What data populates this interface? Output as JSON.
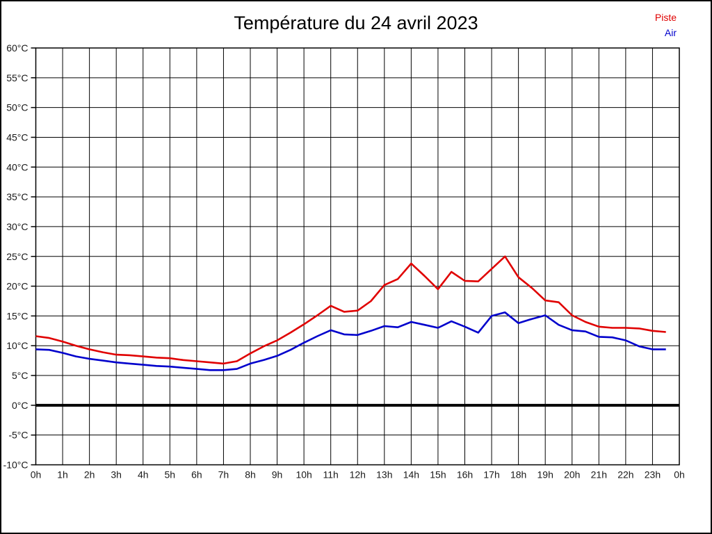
{
  "title": "Température du 24 avril 2023",
  "legend": {
    "items": [
      {
        "label": "Piste",
        "color": "#e00000"
      },
      {
        "label": "Air",
        "color": "#0000cc"
      }
    ]
  },
  "chart_data": {
    "type": "line",
    "title": "Température du 24 avril 2023",
    "xlabel": "",
    "ylabel": "",
    "xlim": [
      0,
      24
    ],
    "ylim": [
      -10,
      60
    ],
    "x_tick_step": 1,
    "y_tick_step": 5,
    "x_tick_labels": [
      "0h",
      "1h",
      "2h",
      "3h",
      "4h",
      "5h",
      "6h",
      "7h",
      "8h",
      "9h",
      "10h",
      "11h",
      "12h",
      "13h",
      "14h",
      "15h",
      "16h",
      "17h",
      "18h",
      "19h",
      "20h",
      "21h",
      "22h",
      "23h",
      "0h"
    ],
    "y_tick_labels": [
      "60°C",
      "55°C",
      "50°C",
      "45°C",
      "40°C",
      "35°C",
      "30°C",
      "25°C",
      "20°C",
      "15°C",
      "10°C",
      "5°C",
      "0°C",
      "-5°C",
      "-10°C"
    ],
    "grid": true,
    "zero_line": true,
    "legend_position": "top-right",
    "x_hours": [
      0,
      0.5,
      1,
      1.5,
      2,
      2.5,
      3,
      3.5,
      4,
      4.5,
      5,
      5.5,
      6,
      6.5,
      7,
      7.5,
      8,
      8.5,
      9,
      9.5,
      10,
      10.5,
      11,
      11.5,
      12,
      12.5,
      13,
      13.5,
      14,
      14.5,
      15,
      15.5,
      16,
      16.5,
      17,
      17.5,
      18,
      18.5,
      19,
      19.5,
      20,
      20.5,
      21,
      21.5,
      22,
      22.5,
      23,
      23.5
    ],
    "series": [
      {
        "name": "Piste",
        "color": "#e00000",
        "values": [
          11.6,
          11.3,
          10.7,
          10.0,
          9.4,
          8.9,
          8.5,
          8.4,
          8.2,
          8.0,
          7.9,
          7.6,
          7.4,
          7.2,
          7.0,
          7.4,
          8.7,
          9.9,
          10.9,
          12.2,
          13.6,
          15.1,
          16.7,
          15.7,
          15.9,
          17.5,
          20.2,
          21.2,
          23.8,
          21.7,
          19.5,
          22.4,
          20.9,
          20.8,
          22.9,
          25.0,
          21.5,
          19.7,
          17.6,
          17.3,
          15.1,
          14.0,
          13.2,
          13.0,
          13.0,
          12.9,
          12.5,
          12.3
        ]
      },
      {
        "name": "Air",
        "color": "#0000cc",
        "values": [
          9.4,
          9.3,
          8.8,
          8.2,
          7.8,
          7.5,
          7.2,
          7.0,
          6.8,
          6.6,
          6.5,
          6.3,
          6.1,
          5.9,
          5.9,
          6.1,
          7.0,
          7.6,
          8.3,
          9.3,
          10.5,
          11.6,
          12.6,
          11.9,
          11.8,
          12.5,
          13.3,
          13.1,
          14.0,
          13.5,
          13.0,
          14.1,
          13.2,
          12.2,
          15.0,
          15.6,
          13.8,
          14.5,
          15.1,
          13.5,
          12.6,
          12.4,
          11.5,
          11.4,
          10.9,
          9.9,
          9.4,
          9.4
        ]
      }
    ]
  }
}
